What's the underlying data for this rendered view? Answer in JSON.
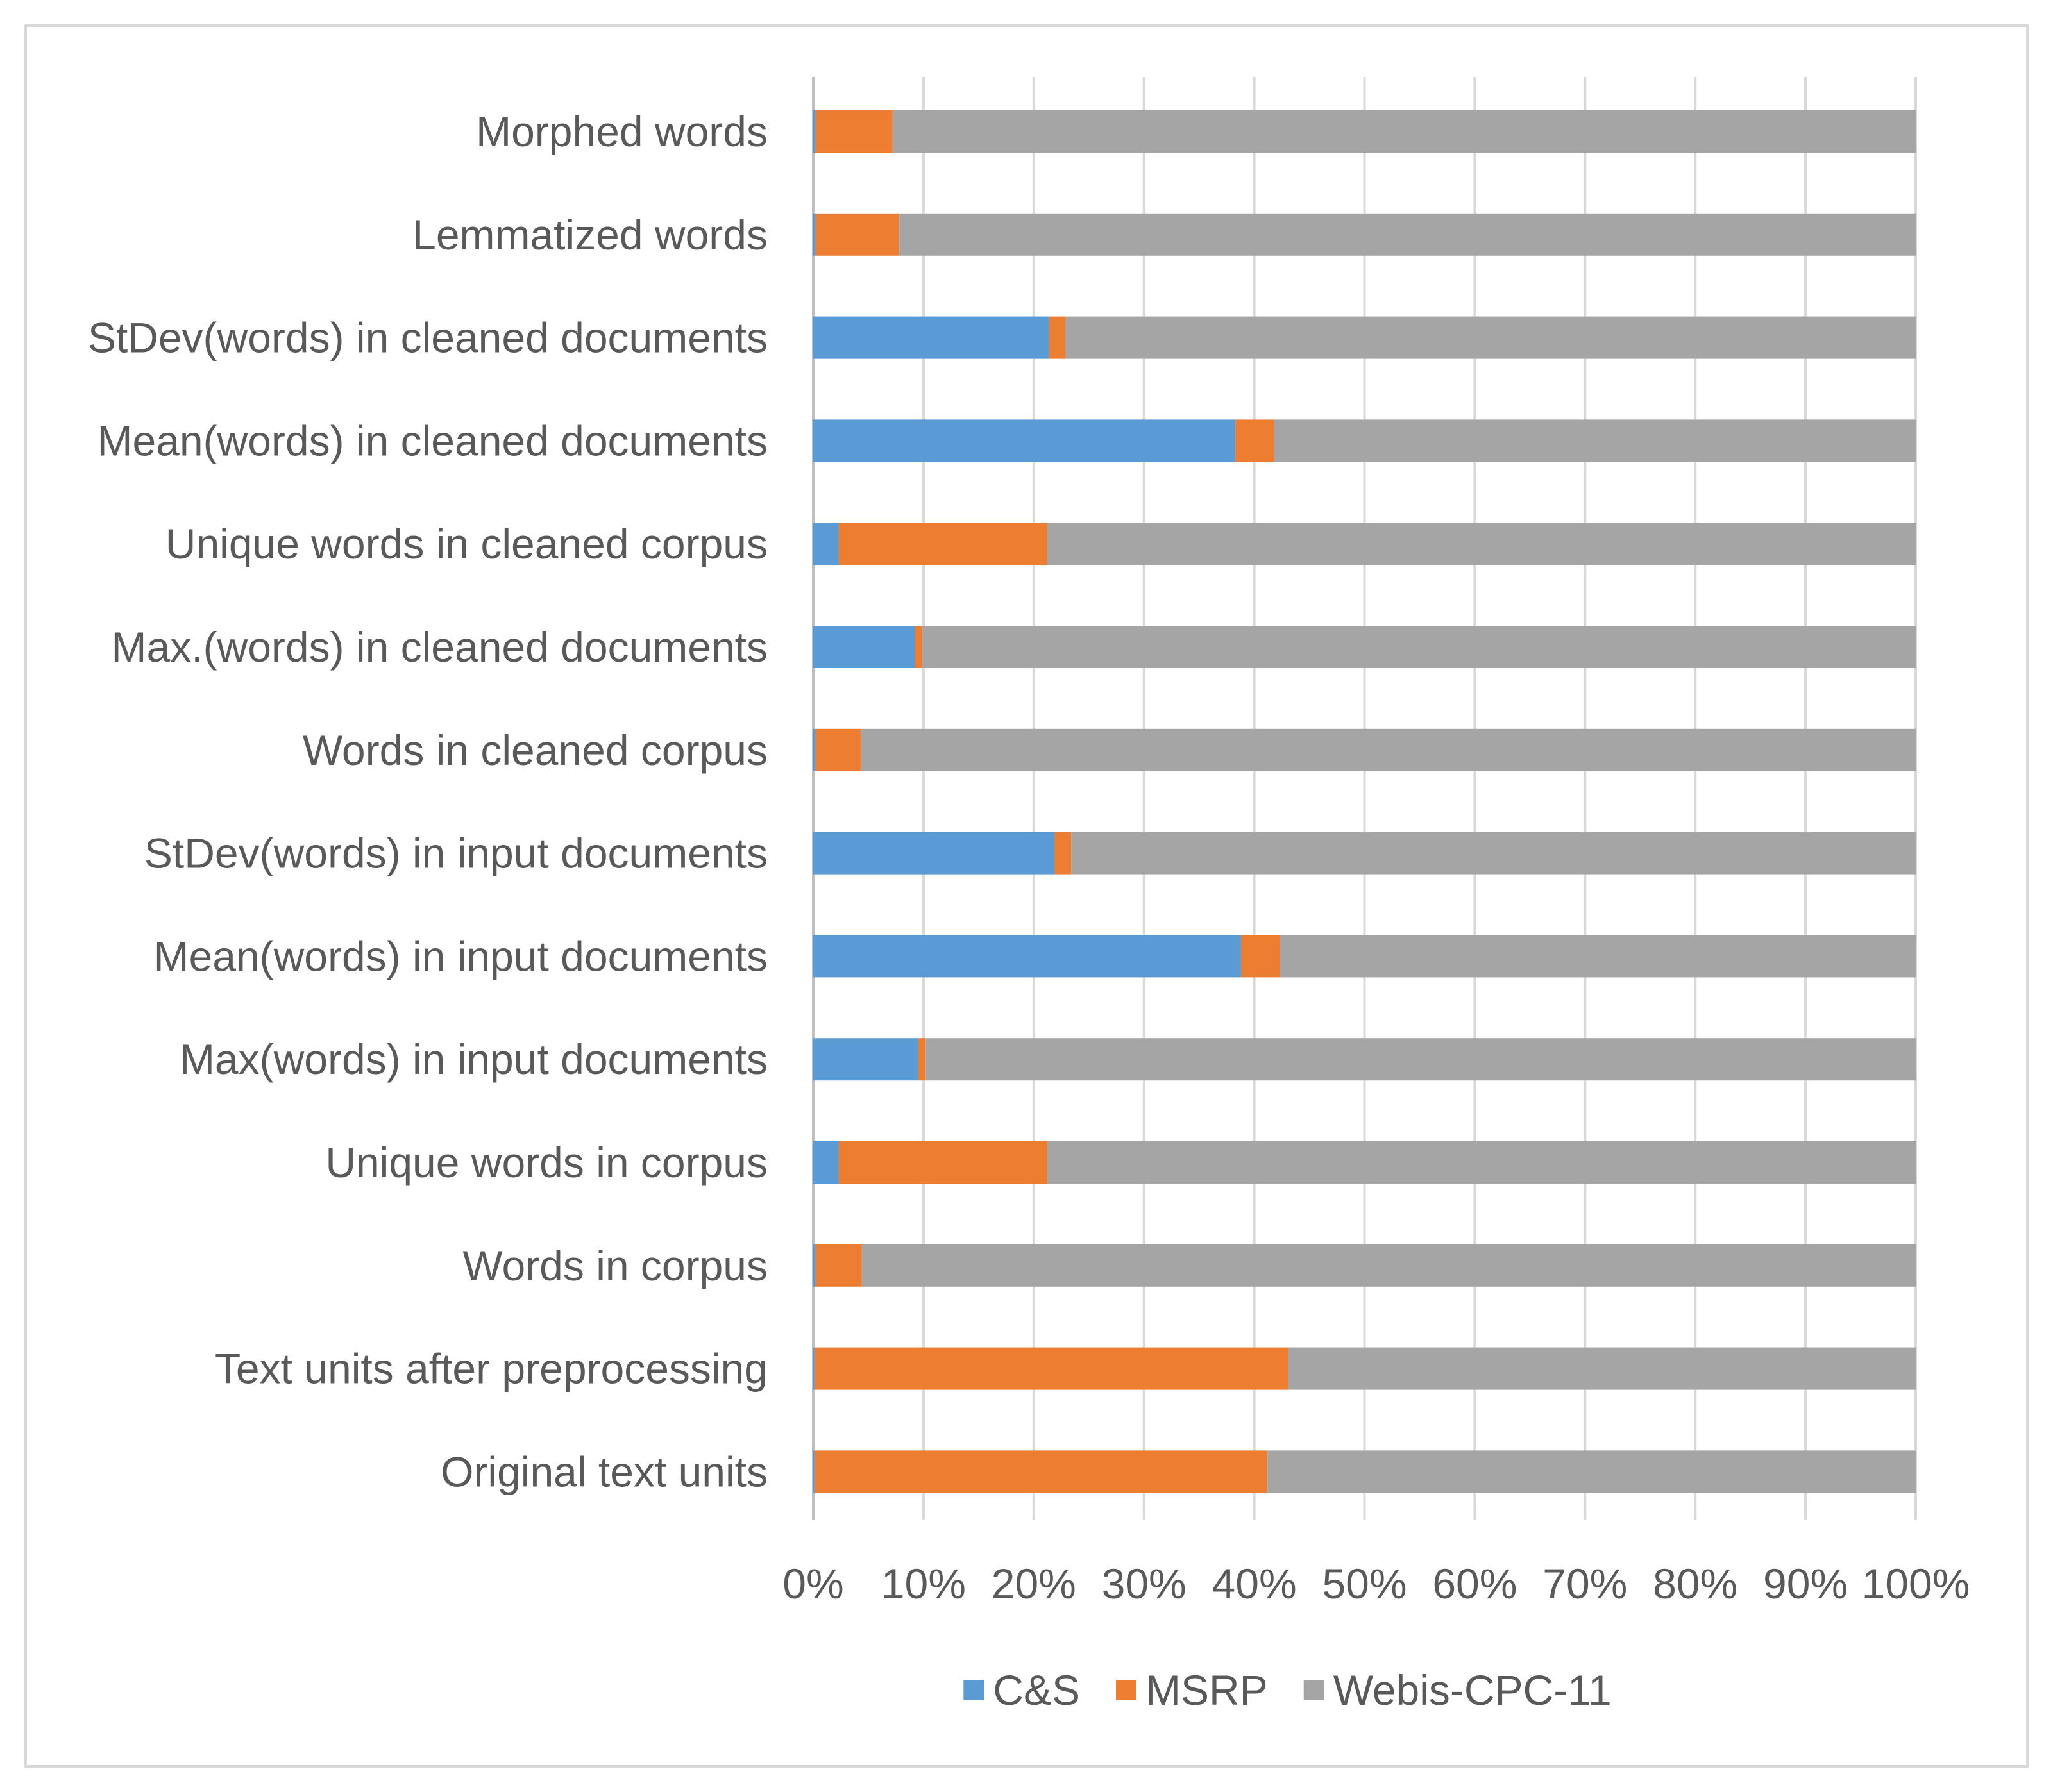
{
  "chart_data": {
    "type": "bar",
    "orientation": "horizontal",
    "stacked": "percent",
    "title": "",
    "xlabel": "",
    "ylabel": "",
    "xlim": [
      0,
      100
    ],
    "x_ticks": [
      "0%",
      "10%",
      "20%",
      "30%",
      "40%",
      "50%",
      "60%",
      "70%",
      "80%",
      "90%",
      "100%"
    ],
    "grid": true,
    "legend_position": "bottom",
    "categories": [
      "Morphed words",
      "Lemmatized words",
      "StDev(words) in cleaned documents",
      "Mean(words) in cleaned documents",
      "Unique words in cleaned corpus",
      "Max.(words) in cleaned documents",
      "Words in cleaned corpus",
      "StDev(words) in input documents",
      "Mean(words) in input documents",
      "Max(words) in input documents",
      "Unique words in corpus",
      "Words in corpus",
      "Text units after preprocessing",
      "Original text units"
    ],
    "series": [
      {
        "name": "C&S",
        "color": "#5b9bd5",
        "values": [
          0.2,
          0.2,
          21.4,
          38.3,
          2.3,
          9.2,
          0.2,
          21.9,
          38.8,
          9.5,
          2.3,
          0.2,
          0.1,
          0.1
        ]
      },
      {
        "name": "MSRP",
        "color": "#ed7d31",
        "values": [
          7.0,
          7.6,
          1.5,
          3.5,
          18.9,
          0.7,
          4.1,
          1.5,
          3.5,
          0.7,
          18.9,
          4.2,
          43.0,
          41.1
        ]
      },
      {
        "name": "Webis-CPC-11",
        "color": "#a5a5a5",
        "values": [
          92.8,
          92.2,
          77.1,
          58.2,
          78.8,
          90.1,
          95.7,
          76.6,
          57.7,
          89.8,
          78.8,
          95.6,
          56.9,
          58.8
        ]
      }
    ]
  }
}
